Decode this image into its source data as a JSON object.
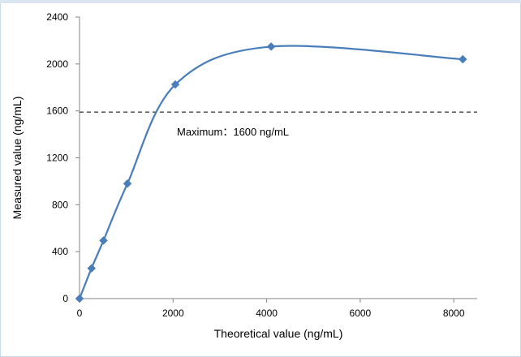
{
  "chart_data": {
    "type": "line",
    "title": "",
    "xlabel": "Theoretical value (ng/mL)",
    "ylabel": "Measured value  (ng/mL)",
    "xlim": [
      0,
      8500
    ],
    "ylim": [
      0,
      2400
    ],
    "x_ticks": [
      0,
      2000,
      4000,
      6000,
      8000
    ],
    "y_ticks": [
      0,
      400,
      800,
      1200,
      1600,
      2000,
      2400
    ],
    "series": [
      {
        "color": "#4a7ebb",
        "marker": "diamond",
        "smooth": true,
        "points": [
          {
            "x": 0,
            "y": 0
          },
          {
            "x": 256,
            "y": 258
          },
          {
            "x": 512,
            "y": 495
          },
          {
            "x": 1024,
            "y": 980
          },
          {
            "x": 2048,
            "y": 1825
          },
          {
            "x": 4096,
            "y": 2148
          },
          {
            "x": 8192,
            "y": 2040
          }
        ]
      }
    ],
    "reference_line": {
      "y": 1590,
      "x_range": [
        0,
        8500
      ],
      "style": "dashed",
      "color": "#000000"
    },
    "annotation": {
      "text": "Maximum：1600 ng/mL",
      "x": 3200,
      "y": 1445
    },
    "grid": false,
    "legend": "none"
  }
}
